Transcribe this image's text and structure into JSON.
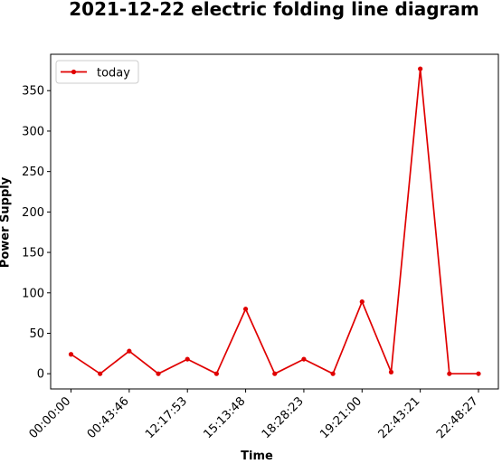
{
  "chart_data": {
    "type": "line",
    "title": "2021-12-22 electric folding line diagram",
    "xlabel": "Time",
    "ylabel": "Power Supply",
    "xtick_labels": [
      "00:00:00",
      "00:43:46",
      "12:17:53",
      "15:13:48",
      "18:28:23",
      "19:21:00",
      "22:43:21",
      "22:48:27"
    ],
    "yticks": [
      0,
      50,
      100,
      150,
      200,
      250,
      300,
      350
    ],
    "ylim": [
      -18.8,
      395
    ],
    "grid": false,
    "legend_position": "top-left",
    "series": [
      {
        "name": "today",
        "color": "#e00000",
        "marker": "dot",
        "values": [
          24,
          0,
          28,
          0,
          18,
          0,
          80,
          0,
          18,
          0,
          89,
          2,
          377,
          0,
          0
        ]
      }
    ]
  }
}
